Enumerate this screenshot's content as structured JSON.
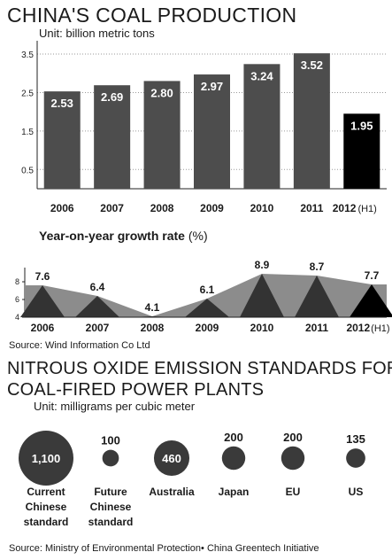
{
  "chart_data": [
    {
      "type": "bar",
      "title": "CHINA'S COAL PRODUCTION",
      "unit_label": "Unit: billion metric tons",
      "categories": [
        "2006",
        "2007",
        "2008",
        "2009",
        "2010",
        "2011",
        "2012"
      ],
      "category_suffix": [
        "",
        "",
        "",
        "",
        "",
        "",
        "(H1)"
      ],
      "values": [
        2.53,
        2.69,
        2.8,
        2.97,
        3.24,
        3.52,
        1.95
      ],
      "value_labels": [
        "2.53",
        "2.69",
        "2.80",
        "2.97",
        "3.24",
        "3.52",
        "1.95"
      ],
      "yticks": [
        0.5,
        1.5,
        2.5,
        3.5
      ],
      "ytick_labels": [
        "0.5",
        "1.5",
        "2.5",
        "3.5"
      ],
      "ylim": [
        0,
        3.8
      ],
      "grid": true,
      "colors": {
        "bar": "#4d4d4d",
        "highlight": "#000000",
        "grid": "#9a9a9a"
      }
    },
    {
      "type": "area",
      "title": "Year-on-year growth rate",
      "unit": "(%)",
      "categories": [
        "2006",
        "2007",
        "2008",
        "2009",
        "2010",
        "2011",
        "2012"
      ],
      "category_suffix": [
        "",
        "",
        "",
        "",
        "",
        "",
        "(H1)"
      ],
      "values": [
        7.6,
        6.4,
        4.1,
        6.1,
        8.9,
        8.7,
        7.7
      ],
      "value_labels": [
        "7.6",
        "6.4",
        "4.1",
        "6.1",
        "8.9",
        "8.7",
        "7.7"
      ],
      "yticks": [
        4,
        6,
        8
      ],
      "ytick_labels": [
        "4",
        "6",
        "8"
      ],
      "ylim": [
        4,
        9.2
      ],
      "colors": {
        "area": "#8c8c8c",
        "triangle": "#333333",
        "highlight": "#000000"
      }
    },
    {
      "type": "bubble",
      "title": "NITROUS OXIDE EMISSION STANDARDS FOR COAL-FIRED POWER PLANTS",
      "unit_label": "Unit: milligrams per cubic meter",
      "categories": [
        "Current\nChinese\nstandard",
        "Future\nChinese\nstandard",
        "Australia",
        "Japan",
        "EU",
        "US"
      ],
      "values": [
        1100,
        100,
        460,
        200,
        200,
        135
      ],
      "value_labels": [
        "1,100",
        "100",
        "460",
        "200",
        "200",
        "135"
      ],
      "colors": {
        "bubble": "#3a3a3a",
        "inner_label": "#ffffff"
      }
    }
  ],
  "source_1": "Source: Wind Information Co Ltd",
  "source_2": "Source: Ministry of Environmental Protection• China Greentech Initiative",
  "title_line1": "NITROUS OXIDE EMISSION STANDARDS FOR",
  "title_line2": "COAL-FIRED POWER PLANTS"
}
